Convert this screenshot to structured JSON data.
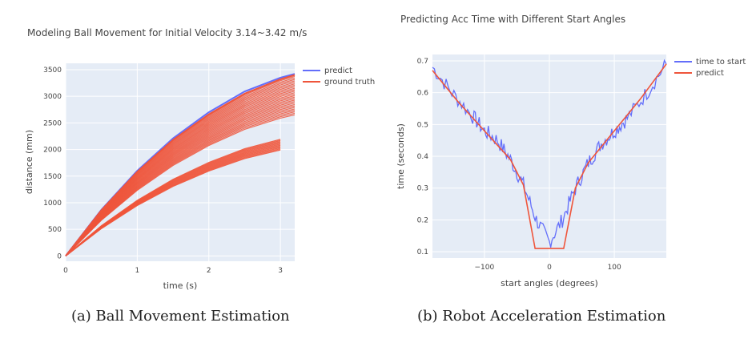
{
  "chart_data": [
    {
      "type": "line",
      "title": "Modeling Ball Movement for Initial Velocity 3.14~3.42 m/s",
      "xlabel": "time (s)",
      "ylabel": "distance (mm)",
      "xlim": [
        0,
        3.2
      ],
      "ylim": [
        -100,
        3620
      ],
      "x_ticks": [
        "0",
        "1",
        "2",
        "3"
      ],
      "y_ticks": [
        "0",
        "500",
        "1000",
        "1500",
        "2000",
        "2500",
        "3000",
        "3500"
      ],
      "grid": true,
      "legend_position": "top-right",
      "caption": "(a) Ball Movement Estimation",
      "series": [
        {
          "name": "predict",
          "color": "#636efa",
          "x": [
            0,
            0.5,
            1.0,
            1.5,
            2.0,
            2.5,
            3.0,
            3.2
          ],
          "y": [
            0,
            870,
            1600,
            2210,
            2700,
            3090,
            3350,
            3420
          ]
        },
        {
          "name": "ground truth",
          "color": "#ef553b",
          "x": [
            0,
            0.5,
            1.0,
            1.5,
            2.0,
            2.5,
            3.0,
            3.2
          ],
          "y": [
            0,
            860,
            1580,
            2180,
            2660,
            3050,
            3320,
            3400
          ]
        }
      ]
    },
    {
      "type": "line",
      "title": "Predicting Acc Time with Different Start Angles",
      "xlabel": "start angles (degrees)",
      "ylabel": "time (seconds)",
      "xlim": [
        -180,
        180
      ],
      "ylim": [
        0.08,
        0.72
      ],
      "x_ticks": [
        "−100",
        "0",
        "100"
      ],
      "y_ticks": [
        "0.1",
        "0.2",
        "0.3",
        "0.4",
        "0.5",
        "0.6",
        "0.7"
      ],
      "grid": true,
      "legend_position": "top-right",
      "caption": "(b) Robot Acceleration Estimation",
      "series": [
        {
          "name": "time to start",
          "color": "#636efa",
          "x": [
            -180,
            -150,
            -120,
            -100,
            -80,
            -60,
            -40,
            -20,
            0,
            20,
            40,
            60,
            80,
            100,
            120,
            150,
            180
          ],
          "y": [
            0.68,
            0.6,
            0.53,
            0.48,
            0.45,
            0.39,
            0.31,
            0.2,
            0.13,
            0.2,
            0.3,
            0.38,
            0.44,
            0.48,
            0.52,
            0.6,
            0.69
          ]
        },
        {
          "name": "predict",
          "color": "#ef553b",
          "x": [
            -180,
            -140,
            -100,
            -60,
            -40,
            -22,
            22,
            40,
            60,
            100,
            140,
            180
          ],
          "y": [
            0.67,
            0.57,
            0.48,
            0.39,
            0.31,
            0.11,
            0.11,
            0.3,
            0.38,
            0.48,
            0.58,
            0.69
          ]
        }
      ]
    }
  ]
}
